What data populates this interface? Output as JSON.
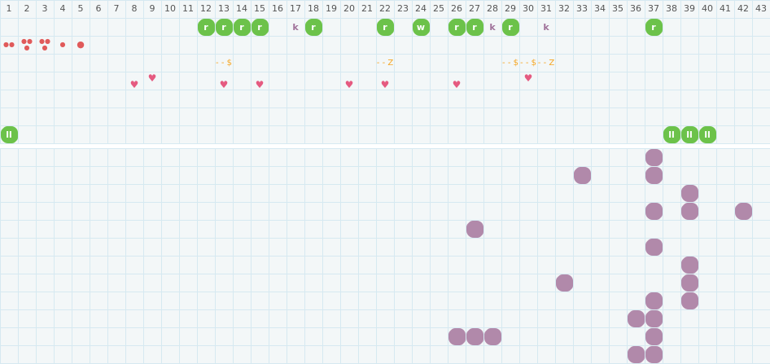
{
  "columns": [
    "1",
    "2",
    "3",
    "4",
    "5",
    "6",
    "7",
    "8",
    "9",
    "10",
    "11",
    "12",
    "13",
    "14",
    "15",
    "16",
    "17",
    "18",
    "19",
    "20",
    "21",
    "22",
    "23",
    "24",
    "25",
    "26",
    "27",
    "28",
    "29",
    "30",
    "31",
    "32",
    "33",
    "34",
    "35",
    "36",
    "37",
    "38",
    "39",
    "40",
    "41",
    "42",
    "43"
  ],
  "colors": {
    "green_tile": "#6cc24a",
    "purple_tile": "#b189aa",
    "heart": "#e55a80",
    "drop": "#e05a5a",
    "note": "#f5a623",
    "grid_line": "#d6e9f1",
    "grid_bg": "#f3f7f8"
  },
  "top_items": [
    {
      "col": 12,
      "row": 1,
      "type": "green",
      "label": "r"
    },
    {
      "col": 13,
      "row": 1,
      "type": "green",
      "label": "r"
    },
    {
      "col": 14,
      "row": 1,
      "type": "green",
      "label": "r"
    },
    {
      "col": 15,
      "row": 1,
      "type": "green",
      "label": "r"
    },
    {
      "col": 17,
      "row": 1,
      "type": "text",
      "label": "k"
    },
    {
      "col": 18,
      "row": 1,
      "type": "green",
      "label": "r"
    },
    {
      "col": 22,
      "row": 1,
      "type": "green",
      "label": "r"
    },
    {
      "col": 24,
      "row": 1,
      "type": "green",
      "label": "w"
    },
    {
      "col": 26,
      "row": 1,
      "type": "green",
      "label": "r"
    },
    {
      "col": 27,
      "row": 1,
      "type": "green",
      "label": "r"
    },
    {
      "col": 28,
      "row": 1,
      "type": "text",
      "label": "k"
    },
    {
      "col": 29,
      "row": 1,
      "type": "green",
      "label": "r"
    },
    {
      "col": 31,
      "row": 1,
      "type": "text",
      "label": "k"
    },
    {
      "col": 37,
      "row": 1,
      "type": "green",
      "label": "r"
    },
    {
      "col": 1,
      "row": 2,
      "type": "drops",
      "count": 2
    },
    {
      "col": 2,
      "row": 2,
      "type": "drops",
      "count": 3
    },
    {
      "col": 3,
      "row": 2,
      "type": "drops",
      "count": 3
    },
    {
      "col": 4,
      "row": 2,
      "type": "drops",
      "count": 1
    },
    {
      "col": 5,
      "row": 2,
      "type": "dot"
    },
    {
      "col": 13,
      "row": 3,
      "type": "note",
      "label": "- - $"
    },
    {
      "col": 22,
      "row": 3,
      "type": "note",
      "label": "- - Z"
    },
    {
      "col": 29,
      "row": 3,
      "type": "note",
      "label": "- - $"
    },
    {
      "col": 30,
      "row": 3,
      "type": "note",
      "label": "- - $"
    },
    {
      "col": 31,
      "row": 3,
      "type": "note",
      "label": "- - Z"
    },
    {
      "col": 8,
      "row": 4,
      "type": "heart",
      "level": "low"
    },
    {
      "col": 9,
      "row": 4,
      "type": "heart",
      "level": "high"
    },
    {
      "col": 13,
      "row": 4,
      "type": "heart",
      "level": "low"
    },
    {
      "col": 15,
      "row": 4,
      "type": "heart",
      "level": "low"
    },
    {
      "col": 20,
      "row": 4,
      "type": "heart",
      "level": "low"
    },
    {
      "col": 22,
      "row": 4,
      "type": "heart",
      "level": "low"
    },
    {
      "col": 26,
      "row": 4,
      "type": "heart",
      "level": "low"
    },
    {
      "col": 30,
      "row": 4,
      "type": "heart",
      "level": "high"
    },
    {
      "col": 1,
      "row": 7,
      "type": "green",
      "label": "ll"
    },
    {
      "col": 38,
      "row": 7,
      "type": "green",
      "label": "ll"
    },
    {
      "col": 39,
      "row": 7,
      "type": "green",
      "label": "ll"
    },
    {
      "col": 40,
      "row": 7,
      "type": "green",
      "label": "ll"
    }
  ],
  "bottom_tiles": [
    [
      37,
      1
    ],
    [
      33,
      2
    ],
    [
      37,
      2
    ],
    [
      39,
      3
    ],
    [
      37,
      4
    ],
    [
      39,
      4
    ],
    [
      42,
      4
    ],
    [
      27,
      5
    ],
    [
      37,
      6
    ],
    [
      39,
      7
    ],
    [
      32,
      8
    ],
    [
      39,
      8
    ],
    [
      37,
      9
    ],
    [
      39,
      9
    ],
    [
      36,
      10
    ],
    [
      37,
      10
    ],
    [
      26,
      11
    ],
    [
      27,
      11
    ],
    [
      28,
      11
    ],
    [
      37,
      11
    ],
    [
      36,
      12
    ],
    [
      37,
      12
    ]
  ]
}
